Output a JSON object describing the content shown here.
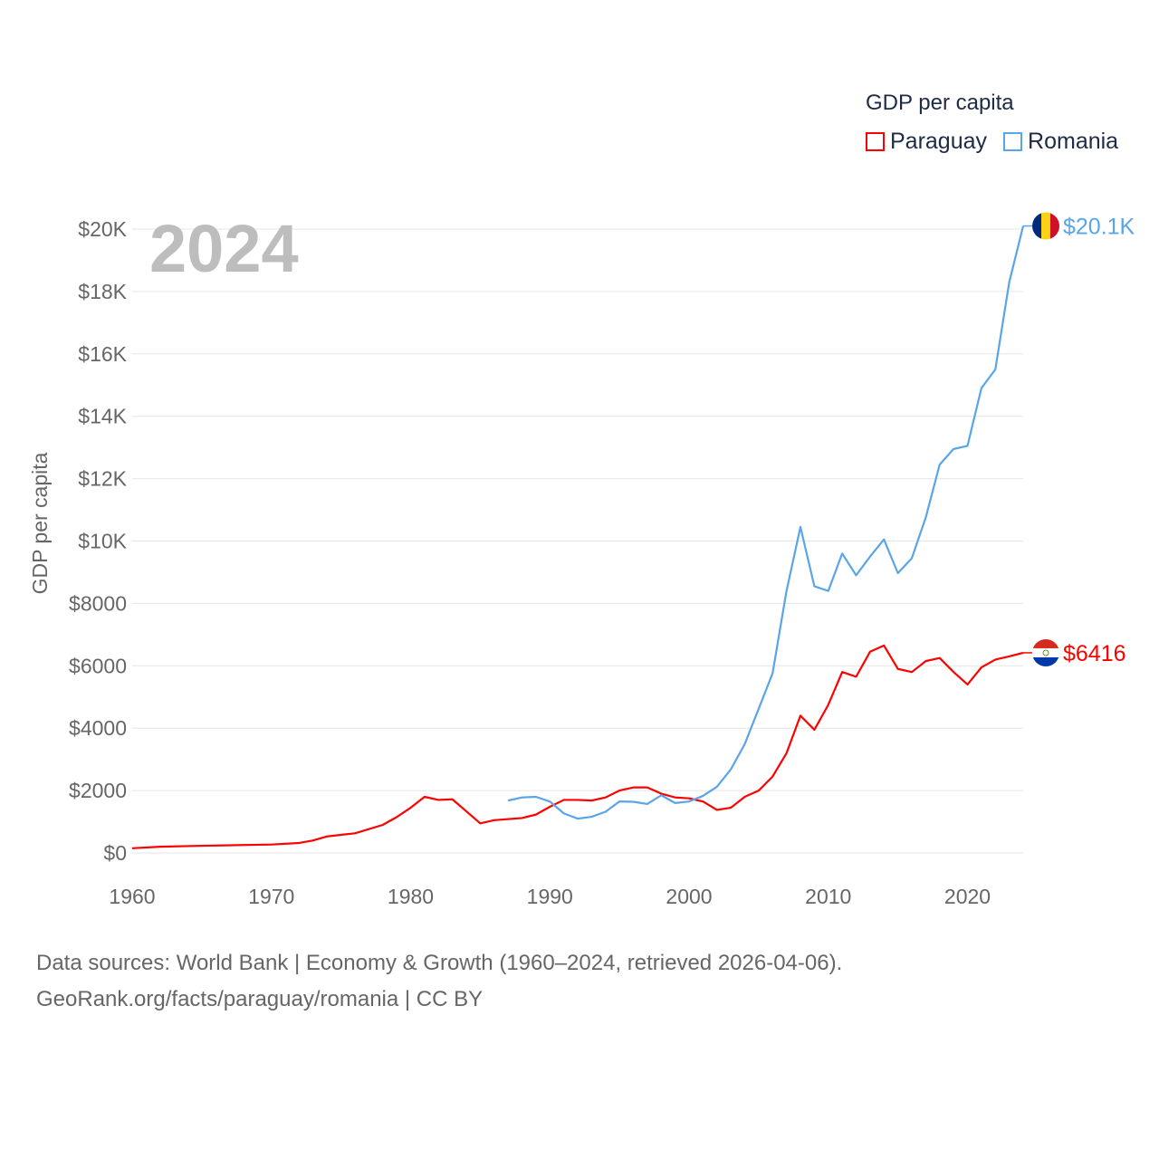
{
  "chart_data": {
    "type": "line",
    "title": "GDP per capita",
    "year_label": "2024",
    "xlabel": "",
    "ylabel": "GDP per capita",
    "xlim": [
      1960,
      2024
    ],
    "ylim": [
      0,
      20000
    ],
    "x_ticks": [
      1960,
      1970,
      1980,
      1990,
      2000,
      2010,
      2020
    ],
    "y_ticks": [
      0,
      2000,
      4000,
      6000,
      8000,
      10000,
      12000,
      14000,
      16000,
      18000,
      20000
    ],
    "y_tick_labels": [
      "$0",
      "$2000",
      "$4000",
      "$6000",
      "$8000",
      "$10K",
      "$12K",
      "$14K",
      "$16K",
      "$18K",
      "$20K"
    ],
    "grid": true,
    "legend_position": "top-right",
    "series": [
      {
        "name": "Paraguay",
        "color": "#ff0000",
        "end_label": "$6416",
        "x": [
          1960,
          1962,
          1965,
          1970,
          1972,
          1973,
          1974,
          1976,
          1978,
          1979,
          1980,
          1981,
          1982,
          1983,
          1985,
          1986,
          1988,
          1989,
          1990,
          1991,
          1992,
          1993,
          1994,
          1995,
          1996,
          1997,
          1998,
          1999,
          2000,
          2001,
          2002,
          2003,
          2004,
          2005,
          2006,
          2007,
          2008,
          2009,
          2010,
          2011,
          2012,
          2013,
          2014,
          2015,
          2016,
          2017,
          2018,
          2019,
          2020,
          2021,
          2022,
          2023,
          2024
        ],
        "y": [
          150,
          200,
          230,
          270,
          320,
          400,
          530,
          630,
          900,
          1150,
          1450,
          1800,
          1700,
          1720,
          950,
          1050,
          1120,
          1230,
          1480,
          1700,
          1700,
          1680,
          1780,
          2000,
          2100,
          2100,
          1900,
          1780,
          1750,
          1650,
          1380,
          1450,
          1800,
          2000,
          2450,
          3200,
          4400,
          3950,
          4750,
          5800,
          5650,
          6450,
          6650,
          5900,
          5800,
          6150,
          6250,
          5800,
          5400,
          5950,
          6200,
          6300,
          6416
        ]
      },
      {
        "name": "Romania",
        "color": "#5aa5e8",
        "end_label": "$20.1K",
        "x": [
          1987,
          1988,
          1989,
          1990,
          1991,
          1992,
          1993,
          1994,
          1995,
          1996,
          1997,
          1998,
          1999,
          2000,
          2001,
          2002,
          2003,
          2004,
          2005,
          2006,
          2007,
          2008,
          2009,
          2010,
          2011,
          2012,
          2013,
          2014,
          2015,
          2016,
          2017,
          2018,
          2019,
          2020,
          2021,
          2022,
          2023,
          2024
        ],
        "y": [
          1680,
          1780,
          1800,
          1650,
          1270,
          1100,
          1160,
          1320,
          1650,
          1640,
          1570,
          1850,
          1600,
          1650,
          1830,
          2120,
          2680,
          3490,
          4620,
          5760,
          8400,
          10450,
          8550,
          8400,
          9600,
          8900,
          9500,
          10050,
          8970,
          9450,
          10750,
          12450,
          12950,
          13050,
          14900,
          15500,
          18300,
          20100
        ]
      }
    ]
  },
  "source": {
    "line1": "Data sources: World Bank | Economy & Growth (1960–2024, retrieved 2026-04-06).",
    "line2": "GeoRank.org/facts/paraguay/romania | CC BY"
  }
}
